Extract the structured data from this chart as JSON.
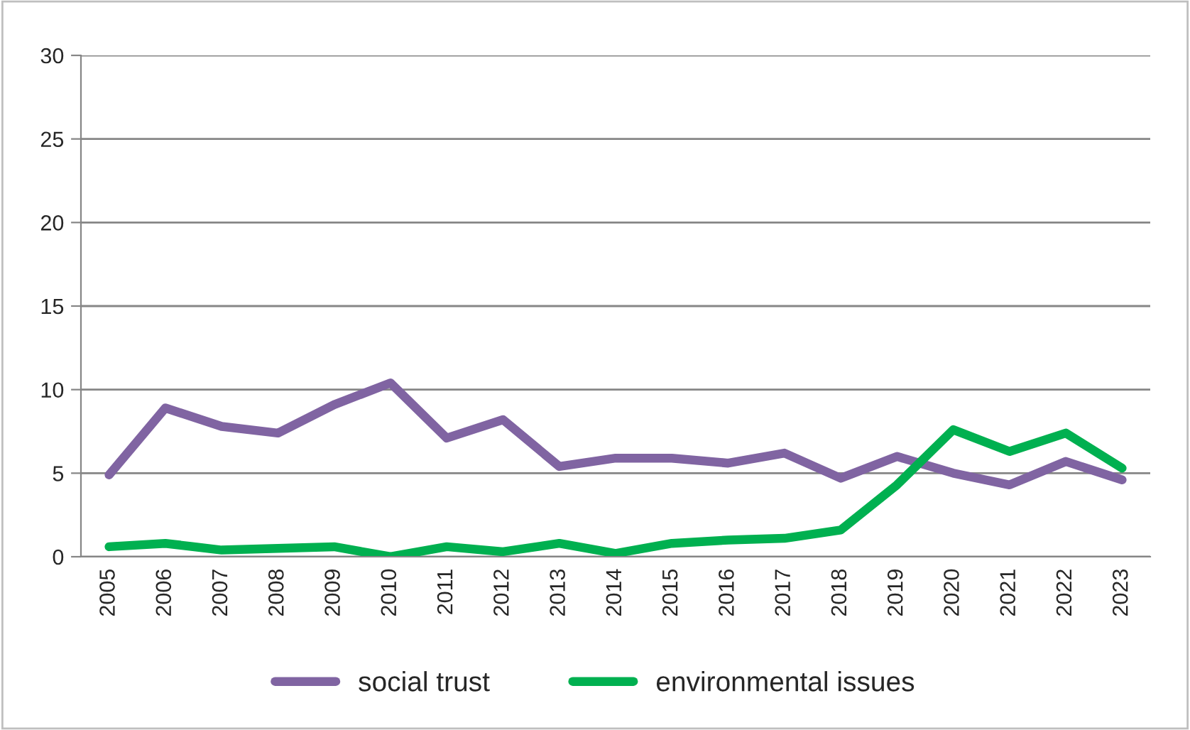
{
  "chart_data": {
    "type": "line",
    "categories": [
      "2005",
      "2006",
      "2007",
      "2008",
      "2009",
      "2010",
      "2011",
      "2012",
      "2013",
      "2014",
      "2015",
      "2016",
      "2017",
      "2018",
      "2019",
      "2020",
      "2021",
      "2022",
      "2023"
    ],
    "series": [
      {
        "name": "social trust",
        "color": "#8064a2",
        "values": [
          4.9,
          8.9,
          7.8,
          7.4,
          9.1,
          10.4,
          7.1,
          8.2,
          5.4,
          5.9,
          5.9,
          5.6,
          6.2,
          4.7,
          6.0,
          5.0,
          4.3,
          5.7,
          4.6
        ]
      },
      {
        "name": "environmental issues",
        "color": "#00b050",
        "values": [
          0.6,
          0.8,
          0.4,
          0.5,
          0.6,
          0.0,
          0.6,
          0.3,
          0.8,
          0.2,
          0.8,
          1.0,
          1.1,
          1.6,
          4.3,
          7.6,
          6.3,
          7.4,
          5.3
        ]
      }
    ],
    "ylim": [
      0,
      30
    ],
    "yticks": [
      0,
      5,
      10,
      15,
      20,
      25,
      30
    ],
    "grid": "y",
    "legend": "bottom",
    "marker": "none",
    "line_style": "solid"
  }
}
